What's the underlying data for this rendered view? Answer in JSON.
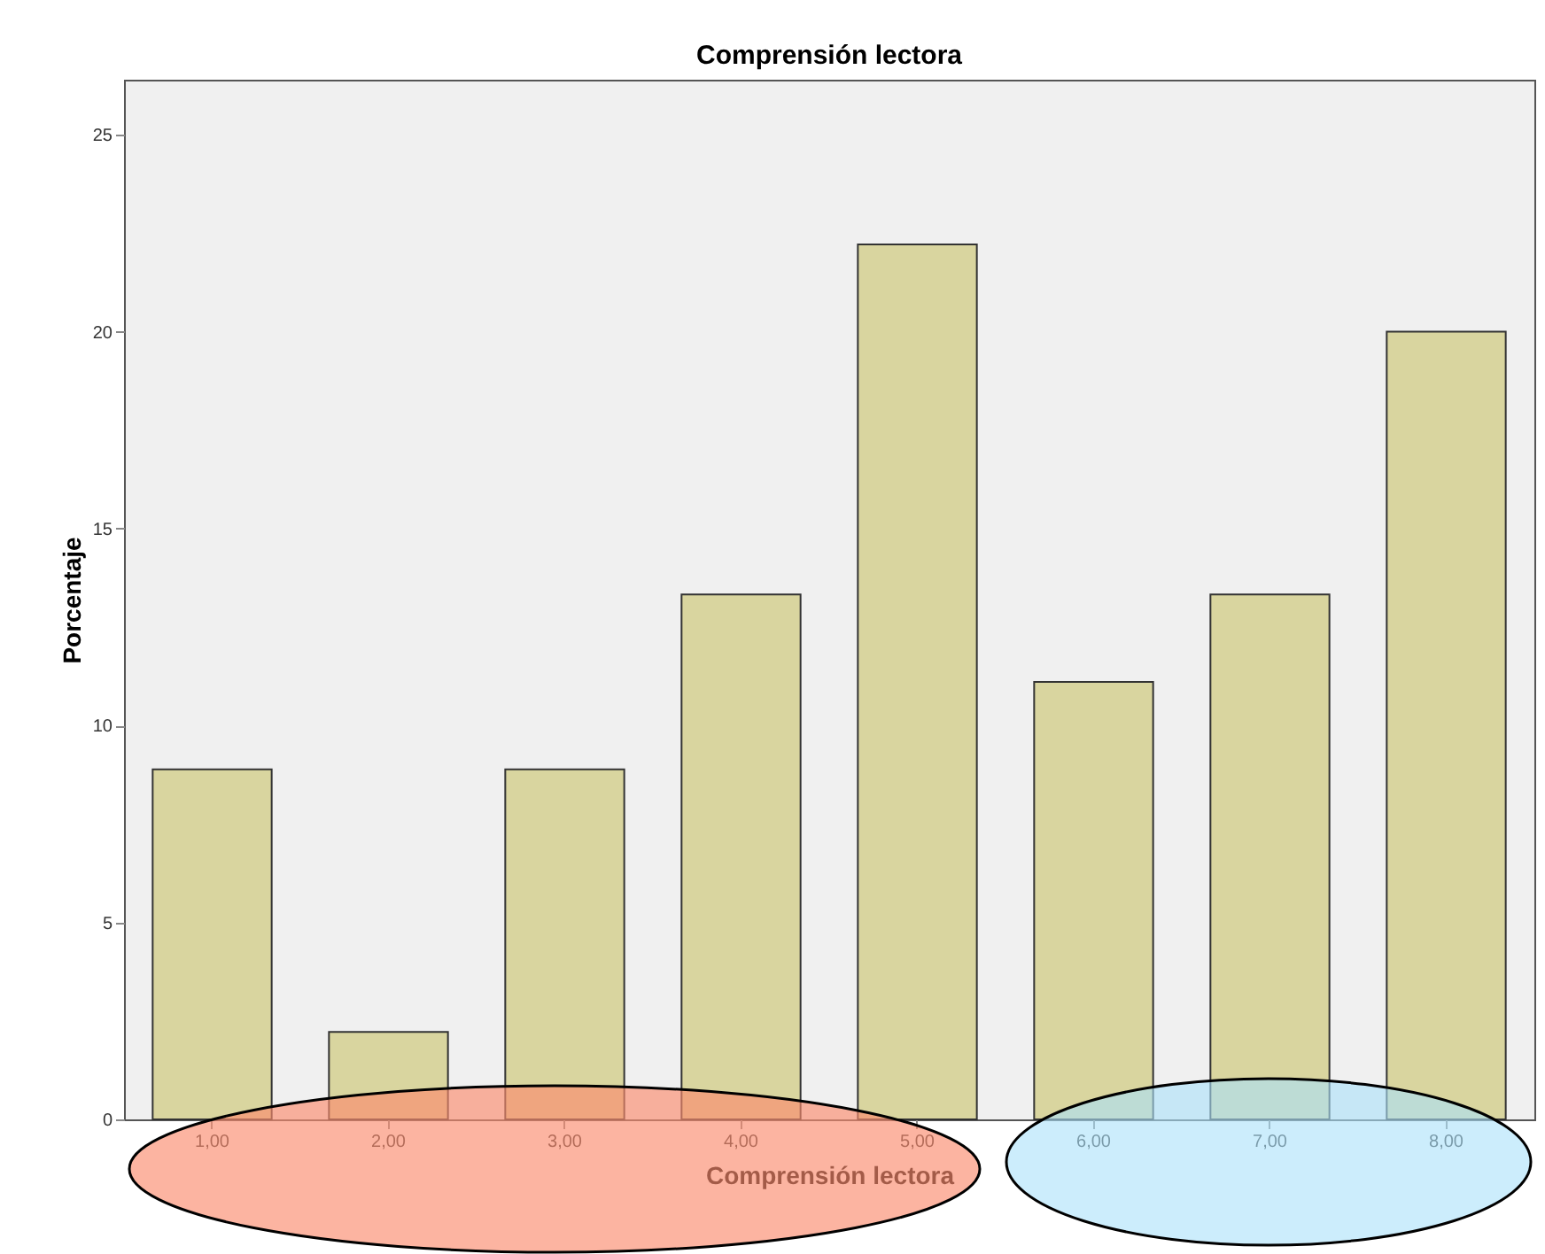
{
  "chart_data": {
    "type": "bar",
    "title": "Comprensión lectora",
    "xlabel": "Comprensión lectora",
    "ylabel": "Porcentaje",
    "categories": [
      "1,00",
      "2,00",
      "3,00",
      "4,00",
      "5,00",
      "6,00",
      "7,00",
      "8,00"
    ],
    "values": [
      8.89,
      2.22,
      8.89,
      13.33,
      22.22,
      11.11,
      13.33,
      20.0
    ],
    "color": "#d9d59f",
    "ylim": [
      0,
      26.4
    ],
    "yticks": [
      0,
      5,
      10,
      15,
      20,
      25
    ],
    "grid": false
  }
}
